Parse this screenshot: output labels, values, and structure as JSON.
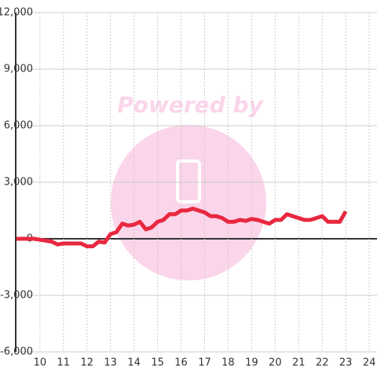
{
  "chart_data": {
    "type": "line",
    "watermark": "Powered by",
    "x": [
      9,
      9.25,
      9.5,
      9.75,
      10,
      10.25,
      10.5,
      10.75,
      11,
      11.25,
      11.5,
      11.75,
      12,
      12.25,
      12.5,
      12.75,
      13,
      13.25,
      13.5,
      13.75,
      14,
      14.25,
      14.5,
      14.75,
      15,
      15.25,
      15.5,
      15.75,
      16,
      16.25,
      16.5,
      16.75,
      17,
      17.25,
      17.5,
      17.75,
      18,
      18.25,
      18.5,
      18.75,
      19,
      19.25,
      19.5,
      19.75,
      20,
      20.25,
      20.5,
      20.75,
      21,
      21.25,
      21.5,
      21.75,
      22,
      22.25,
      22.5,
      22.75,
      23
    ],
    "series": [
      {
        "color": "#e8283f",
        "values": [
          0,
          0,
          0,
          0,
          -50,
          -100,
          -150,
          -300,
          -250,
          -250,
          -250,
          -250,
          -400,
          -400,
          -150,
          -200,
          250,
          350,
          800,
          700,
          750,
          900,
          500,
          600,
          900,
          1000,
          1300,
          1300,
          1500,
          1500,
          1600,
          1500,
          1400,
          1200,
          1200,
          1100,
          900,
          900,
          1000,
          950,
          1050,
          1000,
          900,
          800,
          1000,
          1000,
          1300,
          1200,
          1100,
          1000,
          1000,
          1100,
          1200,
          900,
          900,
          900,
          1450
        ]
      }
    ],
    "xlim": [
      8.97,
      24.33
    ],
    "xticks": [
      10,
      11,
      12,
      13,
      14,
      15,
      16,
      17,
      18,
      19,
      20,
      21,
      22,
      23,
      24
    ],
    "ylim": [
      -6000,
      12000
    ],
    "yticks": [
      {
        "value": -6000,
        "label": "-6,000"
      },
      {
        "value": -3000,
        "label": "-3,000"
      },
      0,
      {
        "value": 3000,
        "label": "3,000"
      },
      {
        "value": 6000,
        "label": "6,000"
      },
      {
        "value": 9000,
        "label": "9,000"
      },
      {
        "value": 12000,
        "label": "12,000"
      }
    ],
    "grid": true
  }
}
